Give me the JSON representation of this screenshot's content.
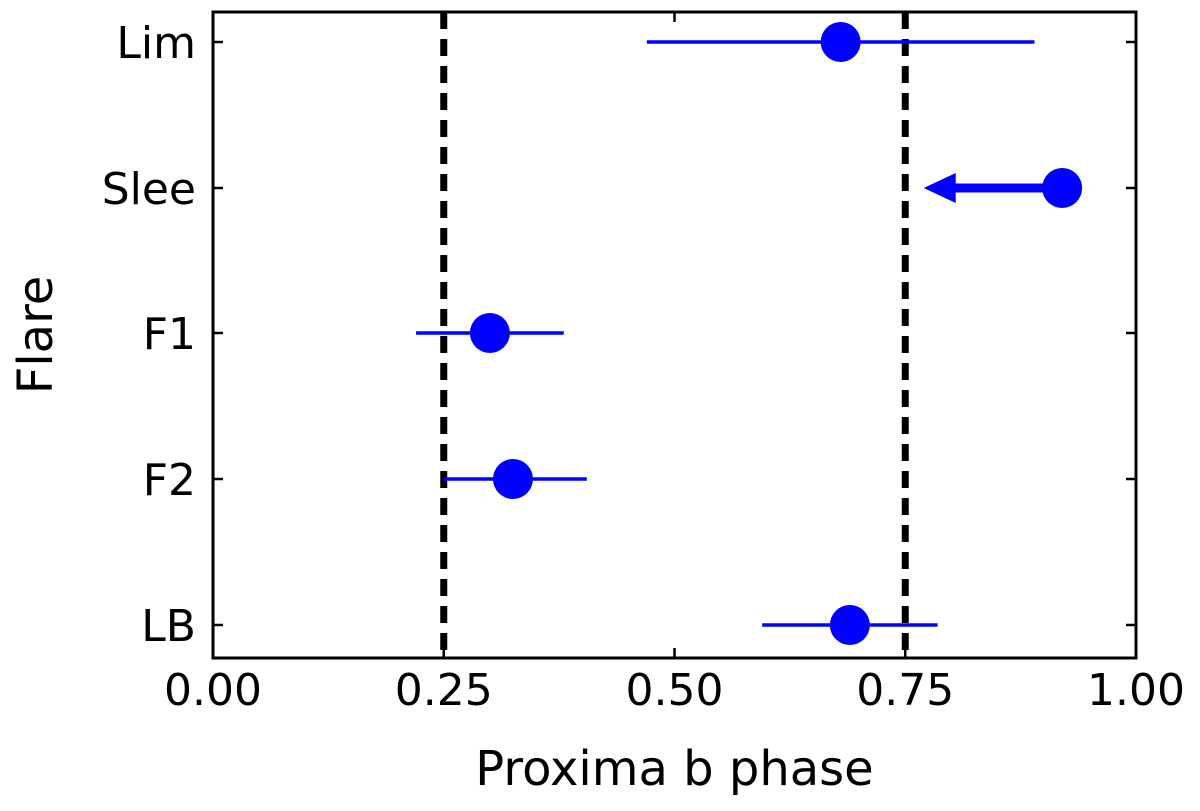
{
  "chart_data": {
    "type": "scatter",
    "title": "",
    "xlabel": "Proxima b phase",
    "ylabel": "Flare",
    "xlim": [
      0.0,
      1.0
    ],
    "xticks": [
      "0.00",
      "0.25",
      "0.50",
      "0.75",
      "1.00"
    ],
    "xtick_values": [
      0.0,
      0.25,
      0.5,
      0.75,
      1.0
    ],
    "categories": [
      "Lim",
      "Slee",
      "F1",
      "F2",
      "LB"
    ],
    "points": [
      {
        "label": "Lim",
        "x": 0.68,
        "xerr_low": 0.47,
        "xerr_high": 0.89,
        "upper_limit": false
      },
      {
        "label": "Slee",
        "x": 0.92,
        "arrow_to": 0.77,
        "upper_limit": true
      },
      {
        "label": "F1",
        "x": 0.3,
        "xerr_low": 0.22,
        "xerr_high": 0.38,
        "upper_limit": false
      },
      {
        "label": "F2",
        "x": 0.325,
        "xerr_low": 0.25,
        "xerr_high": 0.405,
        "upper_limit": false
      },
      {
        "label": "LB",
        "x": 0.69,
        "xerr_low": 0.595,
        "xerr_high": 0.785,
        "upper_limit": false
      }
    ],
    "reference_lines": [
      {
        "x": 0.25,
        "style": "dashed",
        "color": "#000000"
      },
      {
        "x": 0.75,
        "style": "dashed",
        "color": "#000000"
      }
    ],
    "grid": false,
    "legend": "none",
    "colors": {
      "marker": "#0000ff",
      "errorbar": "#0000ff",
      "reference": "#000000",
      "axes": "#000000"
    }
  }
}
